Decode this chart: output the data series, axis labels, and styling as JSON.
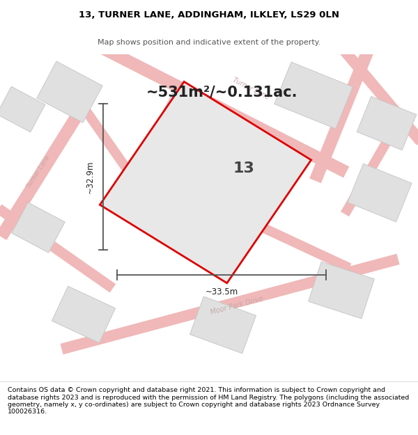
{
  "title_line1": "13, TURNER LANE, ADDINGHAM, ILKLEY, LS29 0LN",
  "title_line2": "Map shows position and indicative extent of the property.",
  "area_text": "~531m²/~0.131ac.",
  "property_number": "13",
  "dim_width": "~33.5m",
  "dim_height": "~32.9m",
  "footer_text": "Contains OS data © Crown copyright and database right 2021. This information is subject to Crown copyright and database rights 2023 and is reproduced with the permission of HM Land Registry. The polygons (including the associated geometry, namely x, y co-ordinates) are subject to Crown copyright and database rights 2023 Ordnance Survey 100026316.",
  "map_bg": "#f8f8f8",
  "road_color": "#f0b8b8",
  "building_color": "#e0e0e0",
  "building_stroke": "#c8c8c8",
  "property_fill": "#e8e8e8",
  "property_stroke": "#dd0000",
  "dim_line_color": "#555555",
  "road_label_color": "#c8a8a8",
  "footer_fontsize": 6.8
}
